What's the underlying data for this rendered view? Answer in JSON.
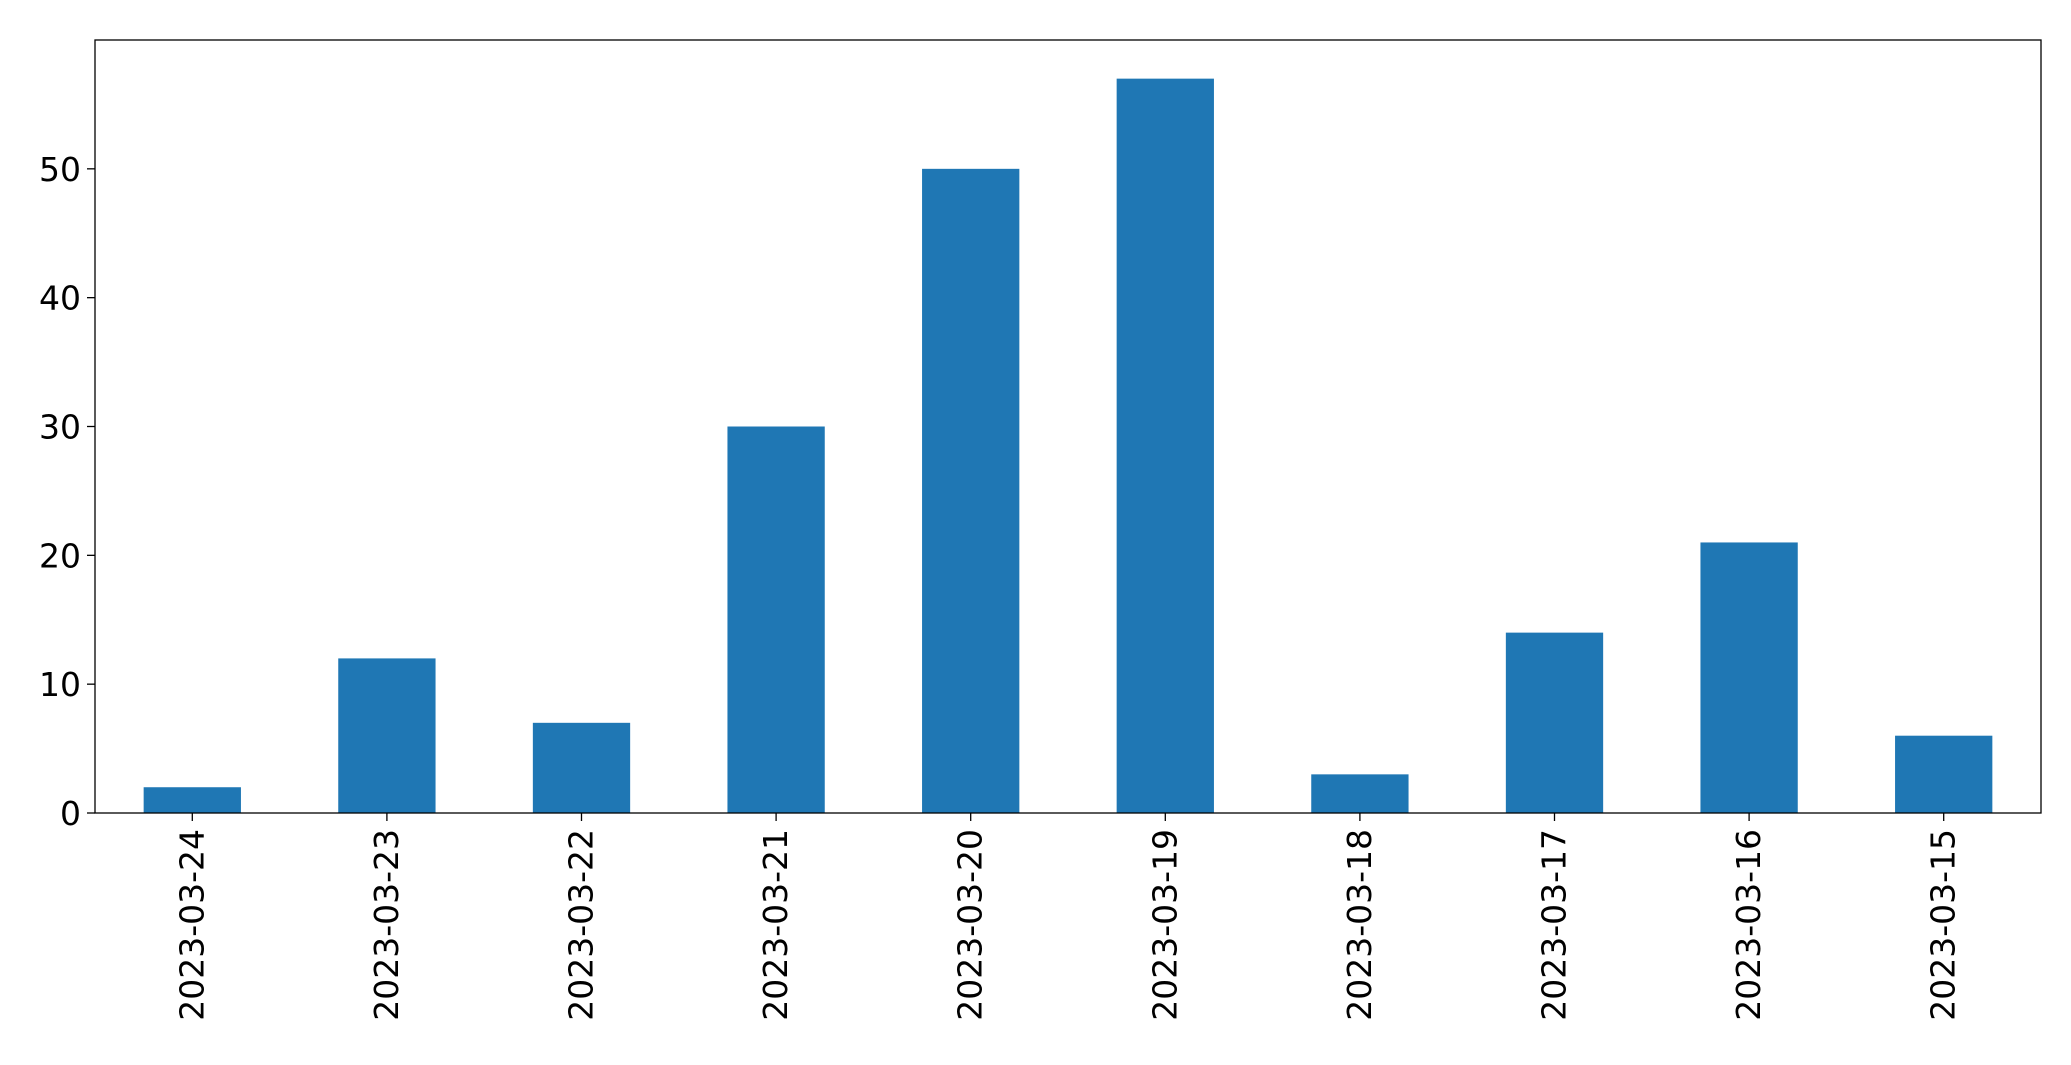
{
  "chart_data": {
    "type": "bar",
    "title": "",
    "xlabel": "",
    "ylabel": "",
    "categories": [
      "2023-03-24",
      "2023-03-23",
      "2023-03-22",
      "2023-03-21",
      "2023-03-20",
      "2023-03-19",
      "2023-03-18",
      "2023-03-17",
      "2023-03-16",
      "2023-03-15"
    ],
    "values": [
      2,
      12,
      7,
      30,
      50,
      57,
      3,
      14,
      21,
      6
    ],
    "ylim": [
      0,
      60
    ],
    "yticks": [
      0,
      10,
      20,
      30,
      40,
      50
    ],
    "ytick_labels": [
      "0",
      "10",
      "20",
      "30",
      "40",
      "50"
    ],
    "bar_color": "#1f77b4",
    "grid": false,
    "legend": "none"
  }
}
